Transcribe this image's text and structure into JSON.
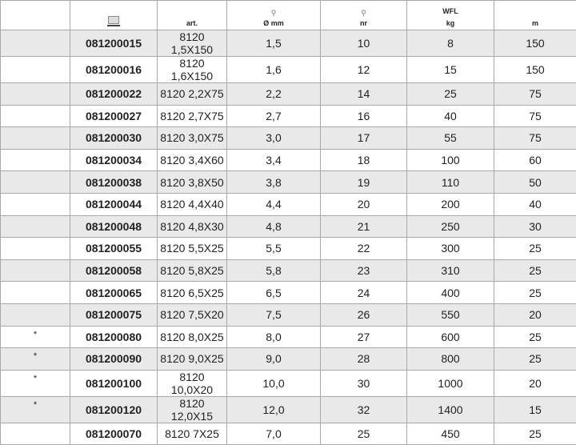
{
  "header": {
    "c0": "",
    "c1_icon": "computer-icon",
    "c2": "art.",
    "c3_icon": "diameter-icon",
    "c3": "Ø mm",
    "c4_icon": "diameter-icon",
    "c4": "nr",
    "c5_top": "WFL",
    "c5": "kg",
    "c6": "m"
  },
  "rows": [
    [
      "",
      "081200015",
      "8120 1,5X150",
      "1,5",
      "10",
      "8",
      "150"
    ],
    [
      "",
      "081200016",
      "8120 1,6X150",
      "1,6",
      "12",
      "15",
      "150"
    ],
    [
      "",
      "081200022",
      "8120 2,2X75",
      "2,2",
      "14",
      "25",
      "75"
    ],
    [
      "",
      "081200027",
      "8120 2,7X75",
      "2,7",
      "16",
      "40",
      "75"
    ],
    [
      "",
      "081200030",
      "8120 3,0X75",
      "3,0",
      "17",
      "55",
      "75"
    ],
    [
      "",
      "081200034",
      "8120 3,4X60",
      "3,4",
      "18",
      "100",
      "60"
    ],
    [
      "",
      "081200038",
      "8120 3,8X50",
      "3,8",
      "19",
      "110",
      "50"
    ],
    [
      "",
      "081200044",
      "8120 4,4X40",
      "4,4",
      "20",
      "200",
      "40"
    ],
    [
      "",
      "081200048",
      "8120 4,8X30",
      "4,8",
      "21",
      "250",
      "30"
    ],
    [
      "",
      "081200055",
      "8120 5,5X25",
      "5,5",
      "22",
      "300",
      "25"
    ],
    [
      "",
      "081200058",
      "8120 5,8X25",
      "5,8",
      "23",
      "310",
      "25"
    ],
    [
      "",
      "081200065",
      "8120 6,5X25",
      "6,5",
      "24",
      "400",
      "25"
    ],
    [
      "",
      "081200075",
      "8120 7,5X20",
      "7,5",
      "26",
      "550",
      "20"
    ],
    [
      "*",
      "081200080",
      "8120 8,0X25",
      "8,0",
      "27",
      "600",
      "25"
    ],
    [
      "*",
      "081200090",
      "8120 9,0X25",
      "9,0",
      "28",
      "800",
      "25"
    ],
    [
      "*",
      "081200100",
      "8120 10,0X20",
      "10,0",
      "30",
      "1000",
      "20"
    ],
    [
      "*",
      "081200120",
      "8120 12,0X15",
      "12,0",
      "32",
      "1400",
      "15"
    ],
    [
      "",
      "081200070",
      "8120 7X25",
      "7,0",
      "25",
      "450",
      "25"
    ]
  ]
}
